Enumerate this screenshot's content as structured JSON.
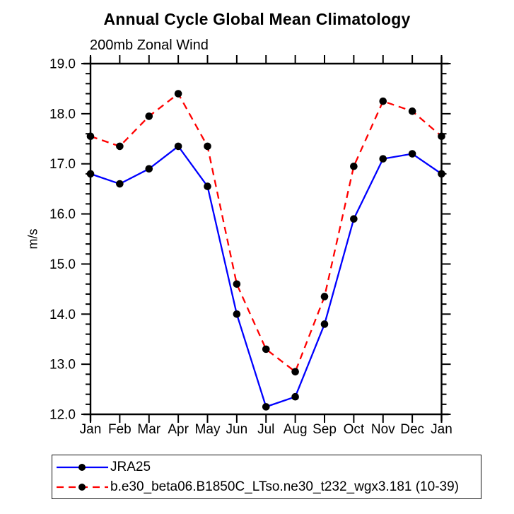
{
  "chart_data": {
    "type": "line",
    "title": "Annual Cycle Global Mean Climatology",
    "subtitle": "200mb Zonal Wind",
    "ylabel": "m/s",
    "categories": [
      "Jan",
      "Feb",
      "Mar",
      "Apr",
      "May",
      "Jun",
      "Jul",
      "Aug",
      "Sep",
      "Oct",
      "Nov",
      "Dec",
      "Jan"
    ],
    "series": [
      {
        "name": "JRA25",
        "color": "#0000ff",
        "line_style": "solid",
        "marker": "filled-circle",
        "values": [
          16.8,
          16.6,
          16.9,
          17.35,
          16.55,
          14.0,
          12.15,
          12.35,
          13.8,
          15.9,
          17.1,
          17.2,
          16.8
        ]
      },
      {
        "name": "b.e30_beta06.B1850C_LTso.ne30_t232_wgx3.181 (10-39)",
        "color": "#ff0000",
        "line_style": "dashed",
        "marker": "filled-circle",
        "values": [
          17.55,
          17.35,
          17.95,
          18.4,
          17.35,
          14.6,
          13.3,
          12.85,
          14.35,
          16.95,
          18.25,
          18.05,
          17.55
        ]
      }
    ],
    "ylim": [
      12.0,
      19.0
    ],
    "yticks": [
      12,
      13,
      14,
      15,
      16,
      17,
      18,
      19
    ],
    "ytick_labels": [
      "12.0",
      "13.0",
      "14.0",
      "15.0",
      "16.0",
      "17.0",
      "18.0",
      "19.0"
    ],
    "yminor_step": 0.2,
    "marker_color": "#000000",
    "axis_color": "#000000",
    "grid": false,
    "legend_position": "bottom-left"
  }
}
